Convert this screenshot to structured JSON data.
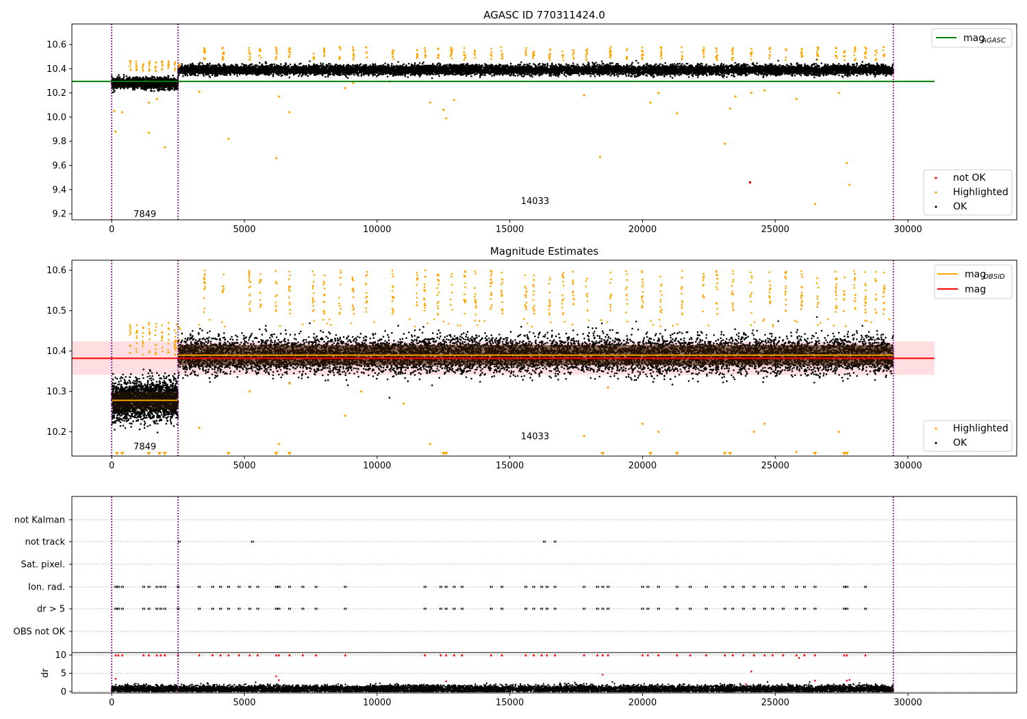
{
  "chart_data": [
    {
      "type": "scatter",
      "title": "AGASC ID 770311424.0",
      "xlabel": "",
      "ylabel": "",
      "xlim": [
        -1500,
        34100
      ],
      "ylim": [
        9.15,
        10.77
      ],
      "xticks": [
        0,
        5000,
        10000,
        15000,
        20000,
        25000,
        30000
      ],
      "yticks": [
        9.2,
        9.4,
        9.6,
        9.8,
        10.0,
        10.2,
        10.4,
        10.6
      ],
      "vlines": [
        0,
        2500,
        29450
      ],
      "hlines": [
        {
          "name": "mag_AGASC",
          "y": 10.295,
          "x": [
            -1500,
            31000
          ],
          "color": "#008000"
        }
      ],
      "obsid_annotations": [
        {
          "text": "7849",
          "x": 1250,
          "y": 9.2
        },
        {
          "text": "14033",
          "x": 15950,
          "y": 9.31
        }
      ],
      "series": [
        {
          "name": "not OK",
          "color": "#ff0000",
          "points": [
            [
              24050,
              9.46
            ]
          ]
        },
        {
          "name": "Highlighted",
          "color": "#ffa500",
          "bands": [
            {
              "x": [
                700,
                2500
              ],
              "y": [
                10.36,
                10.48
              ]
            },
            {
              "x": [
                2500,
                29450
              ],
              "y": [
                10.44,
                10.61
              ],
              "clusters": 30
            }
          ],
          "points": [
            [
              100,
              10.05
            ],
            [
              150,
              9.88
            ],
            [
              400,
              10.04
            ],
            [
              1400,
              9.87
            ],
            [
              1400,
              10.12
            ],
            [
              1700,
              10.15
            ],
            [
              2000,
              9.75
            ],
            [
              3300,
              10.21
            ],
            [
              4400,
              9.82
            ],
            [
              6200,
              9.66
            ],
            [
              6300,
              10.17
            ],
            [
              6700,
              10.04
            ],
            [
              8800,
              10.24
            ],
            [
              9100,
              10.28
            ],
            [
              12000,
              10.12
            ],
            [
              12500,
              10.06
            ],
            [
              12600,
              9.99
            ],
            [
              12900,
              10.14
            ],
            [
              17800,
              10.18
            ],
            [
              18400,
              9.67
            ],
            [
              20300,
              10.12
            ],
            [
              20600,
              10.2
            ],
            [
              21300,
              10.03
            ],
            [
              23100,
              9.78
            ],
            [
              23300,
              10.07
            ],
            [
              23500,
              10.17
            ],
            [
              24100,
              10.2
            ],
            [
              24600,
              10.22
            ],
            [
              25800,
              10.15
            ],
            [
              26500,
              9.28
            ],
            [
              27400,
              10.2
            ],
            [
              27700,
              9.62
            ],
            [
              27800,
              9.44
            ]
          ]
        },
        {
          "name": "OK",
          "color": "#000000",
          "bands": [
            {
              "x": [
                0,
                2500
              ],
              "y": [
                10.28,
                10.03
              ],
              "center": 10.28,
              "spread": 0.035
            },
            {
              "x": [
                2500,
                29450
              ],
              "center": 10.39,
              "spread": 0.035
            }
          ]
        }
      ],
      "legend": [
        {
          "label": "mag_AGASC",
          "location": "top-right"
        },
        {
          "labels": [
            "not OK",
            "Highlighted",
            "OK"
          ],
          "location": "lower-right"
        }
      ]
    },
    {
      "type": "scatter",
      "title": "Magnitude Estimates",
      "xlabel": "",
      "ylabel": "",
      "xlim": [
        -1500,
        34100
      ],
      "ylim": [
        10.14,
        10.625
      ],
      "xticks": [
        0,
        5000,
        10000,
        15000,
        20000,
        25000,
        30000
      ],
      "yticks": [
        10.2,
        10.3,
        10.4,
        10.5,
        10.6
      ],
      "vlines": [
        0,
        2500,
        29450
      ],
      "mag": {
        "y": 10.382,
        "band": [
          10.341,
          10.424
        ],
        "x": [
          -1500,
          31000
        ],
        "color": "#ff0000"
      },
      "mag_obsid": [
        {
          "x": [
            0,
            2500
          ],
          "y": 10.278
        },
        {
          "x": [
            2500,
            29450
          ],
          "y": 10.39
        }
      ],
      "obsid_annotations": [
        {
          "text": "7849",
          "x": 1250,
          "y": 10.165
        },
        {
          "text": "14033",
          "x": 15950,
          "y": 10.19
        }
      ],
      "series": [
        {
          "name": "Highlighted",
          "color": "#ffa500",
          "bands": [
            {
              "x": [
                700,
                2500
              ],
              "y": [
                10.38,
                10.47
              ]
            },
            {
              "x": [
                2500,
                29450
              ],
              "y": [
                10.49,
                10.6
              ],
              "clusters": 30
            }
          ],
          "points": [
            [
              3300,
              10.21
            ],
            [
              5200,
              10.3
            ],
            [
              6300,
              10.17
            ],
            [
              6700,
              10.32
            ],
            [
              8800,
              10.24
            ],
            [
              9400,
              10.3
            ],
            [
              11000,
              10.27
            ],
            [
              12000,
              10.17
            ],
            [
              17800,
              10.19
            ],
            [
              18700,
              10.31
            ],
            [
              20000,
              10.22
            ],
            [
              20600,
              10.2
            ],
            [
              24200,
              10.2
            ],
            [
              24600,
              10.22
            ],
            [
              25800,
              10.15
            ],
            [
              27400,
              10.2
            ]
          ],
          "below_range_x": [
            200,
            400,
            1400,
            1800,
            2000,
            4400,
            6200,
            6700,
            12500,
            12600,
            18500,
            20300,
            21300,
            23100,
            23300,
            26500,
            27600,
            27700
          ]
        },
        {
          "name": "OK",
          "color": "#000000",
          "bands": [
            {
              "x": [
                0,
                2500
              ],
              "center": 10.28,
              "spread": 0.022
            },
            {
              "x": [
                2500,
                29450
              ],
              "center": 10.39,
              "spread": 0.02
            }
          ]
        }
      ],
      "legend": [
        {
          "labels": [
            "mag_OBSID",
            "mag"
          ],
          "location": "top-right"
        },
        {
          "labels": [
            "Highlighted",
            "OK"
          ],
          "location": "lower-right"
        }
      ]
    },
    {
      "type": "scatter",
      "title": "",
      "xlabel": "",
      "ylabel": "",
      "xlim": [
        -1500,
        34100
      ],
      "xticks": [
        0,
        5000,
        10000,
        15000,
        20000,
        25000,
        30000
      ],
      "vlines": [
        0,
        2500,
        29450
      ],
      "flag_rows": [
        "not Kalman",
        "not track",
        "Sat. pixel.",
        "Ion. rad.",
        "dr > 5",
        "OBS not OK"
      ],
      "flags": {
        "not track": [
          2550,
          5300,
          16300,
          16700
        ],
        "Ion. rad.": [
          150,
          250,
          400,
          1200,
          1400,
          1700,
          1850,
          2000,
          2500,
          3300,
          3800,
          4100,
          4400,
          4800,
          5200,
          5500,
          6200,
          6300,
          6700,
          7200,
          7700,
          8800,
          11800,
          12400,
          12600,
          12900,
          13200,
          14300,
          14700,
          15600,
          15900,
          16200,
          16400,
          16700,
          17800,
          18300,
          18500,
          18700,
          20000,
          20200,
          20600,
          21300,
          21800,
          22400,
          23100,
          23400,
          23800,
          24200,
          24600,
          24900,
          25300,
          25800,
          26100,
          26500,
          27600,
          27700,
          28400
        ],
        "dr > 5": [
          150,
          250,
          400,
          1200,
          1400,
          1700,
          1850,
          2000,
          2500,
          3300,
          3800,
          4100,
          4400,
          4800,
          5200,
          5500,
          6200,
          6300,
          6700,
          7200,
          7700,
          8800,
          11800,
          12400,
          12600,
          12900,
          13200,
          14300,
          14700,
          15600,
          15900,
          16200,
          16400,
          16700,
          17800,
          18300,
          18500,
          18700,
          20000,
          20200,
          20600,
          21300,
          21800,
          22400,
          23100,
          23400,
          23800,
          24200,
          24600,
          24900,
          25300,
          25800,
          26100,
          26500,
          27600,
          27700,
          28400
        ]
      },
      "dr_axis": {
        "ylabel": "dr",
        "yticks": [
          0,
          5,
          10
        ],
        "ylim": [
          -0.4,
          10.3
        ],
        "ok_band": {
          "x": [
            0,
            29450
          ],
          "center": 0.7,
          "spread": 0.5,
          "color": "#000000"
        },
        "red_points": {
          "color": "#ff0000",
          "y": 10,
          "x": [
            150,
            250,
            400,
            1200,
            1400,
            1700,
            1850,
            2000,
            2500,
            3300,
            3800,
            4100,
            4400,
            4800,
            5200,
            5500,
            6200,
            6300,
            6700,
            7200,
            7700,
            8800,
            11800,
            12400,
            12600,
            12900,
            13200,
            14300,
            14700,
            15600,
            15900,
            16200,
            16400,
            16700,
            17800,
            18300,
            18500,
            18700,
            20000,
            20200,
            20600,
            21300,
            21800,
            22400,
            23100,
            23400,
            23800,
            24200,
            24600,
            24900,
            25300,
            25800,
            26100,
            26500,
            27600,
            27700,
            28400
          ],
          "extra": [
            [
              150,
              3.5
            ],
            [
              6200,
              4.2
            ],
            [
              6300,
              3.1
            ],
            [
              12600,
              2.8
            ],
            [
              18500,
              4.6
            ],
            [
              24100,
              5.5
            ],
            [
              25900,
              9.2
            ],
            [
              26500,
              3.0
            ],
            [
              27700,
              3.0
            ],
            [
              27800,
              3.2
            ],
            [
              23900,
              2.0
            ]
          ]
        }
      }
    }
  ],
  "texts": {
    "title1": "AGASC ID 770311424.0",
    "title2": "Magnitude Estimates",
    "legend1_line": "mag",
    "legend1_sub": "AGASC",
    "legend1b_1": "not OK",
    "legend1b_2": "Highlighted",
    "legend1b_3": "OK",
    "legend2_line1": "mag",
    "legend2_sub": "OBSID",
    "legend2_line2": "mag",
    "legend2b_1": "Highlighted",
    "legend2b_2": "OK",
    "obs1": "7849",
    "obs2": "14033",
    "dr_label": "dr"
  },
  "colors": {
    "ok": "#000000",
    "highlighted": "#ffa500",
    "not_ok": "#ff0000",
    "agasc_line": "#008000",
    "mag_line": "#ff0000",
    "mag_band": "#ffd6da",
    "obsid_line": "#ffa500",
    "vline": "#800080",
    "grid": "#b0b0b0",
    "axis": "#000000"
  }
}
